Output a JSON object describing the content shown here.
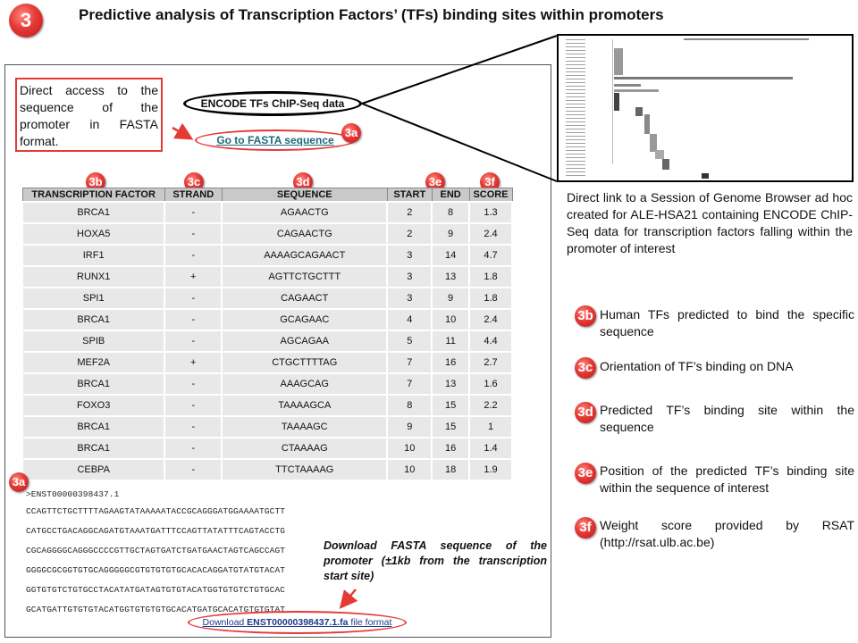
{
  "header": {
    "badge": "3",
    "title": "Predictive analysis of Transcription Factors’ (TFs) binding sites within promoters"
  },
  "fasta_note": "Direct access to the sequence of the promoter in FASTA format.",
  "encode_label": "ENCODE TFs ChIP-Seq data",
  "fasta_link": "Go to FASTA sequence",
  "tags": {
    "a": "3a",
    "b": "3b",
    "c": "3c",
    "d": "3d",
    "e": "3e",
    "f": "3f"
  },
  "table": {
    "headers": [
      "TRANSCRIPTION FACTOR",
      "STRAND",
      "SEQUENCE",
      "START",
      "END",
      "SCORE"
    ],
    "rows": [
      [
        "BRCA1",
        "-",
        "AGAACTG",
        "2",
        "8",
        "1.3"
      ],
      [
        "HOXA5",
        "-",
        "CAGAACTG",
        "2",
        "9",
        "2.4"
      ],
      [
        "IRF1",
        "-",
        "AAAAGCAGAACT",
        "3",
        "14",
        "4.7"
      ],
      [
        "RUNX1",
        "+",
        "AGTTCTGCTTT",
        "3",
        "13",
        "1.8"
      ],
      [
        "SPI1",
        "-",
        "CAGAACT",
        "3",
        "9",
        "1.8"
      ],
      [
        "BRCA1",
        "-",
        "GCAGAAC",
        "4",
        "10",
        "2.4"
      ],
      [
        "SPIB",
        "-",
        "AGCAGAA",
        "5",
        "11",
        "4.4"
      ],
      [
        "MEF2A",
        "+",
        "CTGCTTTTAG",
        "7",
        "16",
        "2.7"
      ],
      [
        "BRCA1",
        "-",
        "AAAGCAG",
        "7",
        "13",
        "1.6"
      ],
      [
        "FOXO3",
        "-",
        "TAAAAGCA",
        "8",
        "15",
        "2.2"
      ],
      [
        "BRCA1",
        "-",
        "TAAAAGC",
        "9",
        "15",
        "1"
      ],
      [
        "BRCA1",
        "-",
        "CTAAAAG",
        "10",
        "16",
        "1.4"
      ],
      [
        "CEBPA",
        "-",
        "TTCTAAAAG",
        "10",
        "18",
        "1.9"
      ]
    ]
  },
  "fasta": {
    "header": ">ENST00000398437.1",
    "lines": [
      "CCAGTTCTGCTTTTAGAAGTATAAAAATACCGCAGGGATGGAAAATGCTT",
      "CATGCCTGACAGGCAGATGTAAATGATTTCCAGTTATATTTCAGTACCTG",
      "CGCAGGGGCAGGGCCCCGTTGCTAGTGATCTGATGAACTAGTCAGCCAGT",
      "GGGGCGCGGTGTGCAGGGGGCGTGTGTGTGCACACAGGATGTATGTACAT",
      "GGTGTGTCTGTGCCTACATATGATAGTGTGTACATGGTGTGTCTGTGCAC",
      "GCATGATTGTGTGTACATGGTGTGTGTGCACATGATGCACATGTGTGTAT"
    ]
  },
  "download": {
    "prefix": "Download ",
    "file": "ENST00000398437.1.fa",
    "suffix": " file format"
  },
  "download_note": "Download FASTA sequence of the promoter (±1kb from the transcription start site)",
  "genome_browser_note": "Direct link to a Session of Genome Browser ad hoc created for ALE-HSA21 containing ENCODE ChIP-Seq data for transcription factors falling within the promoter of interest",
  "legend": [
    {
      "tag": "3b",
      "text": "Human TFs predicted to bind the specific sequence"
    },
    {
      "tag": "3c",
      "text": "Orientation of TF’s binding on DNA"
    },
    {
      "tag": "3d",
      "text": "Predicted TF’s binding site within the sequence"
    },
    {
      "tag": "3e",
      "text": "Position of the predicted TF’s binding site within the sequence of interest"
    },
    {
      "tag": "3f",
      "text": "Weight score provided by RSAT (http://rsat.ulb.ac.be)"
    }
  ],
  "colors": {
    "accent_red": "#e53935",
    "table_header": "#c9c9c9",
    "table_cell": "#e8e8e8"
  }
}
